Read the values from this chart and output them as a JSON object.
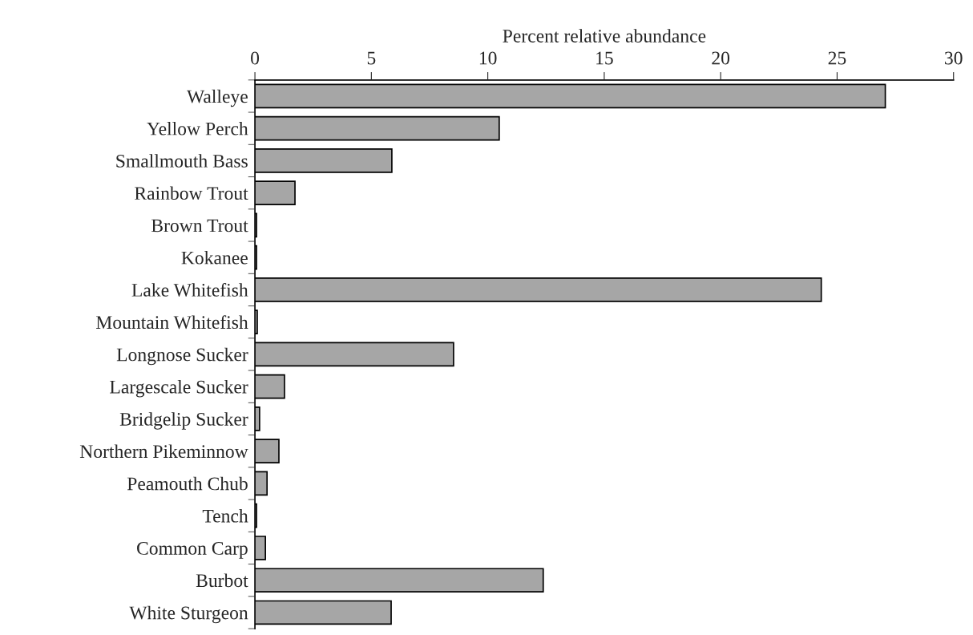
{
  "chart_data": {
    "type": "bar",
    "orientation": "horizontal",
    "xlabel": "Percent relative abundance",
    "categories": [
      "Walleye",
      "Yellow Perch",
      "Smallmouth Bass",
      "Rainbow Trout",
      "Brown Trout",
      "Kokanee",
      "Lake Whitefish",
      "Mountain Whitefish",
      "Longnose Sucker",
      "Largescale Sucker",
      "Bridgelip Sucker",
      "Northern Pikeminnow",
      "Peamouth Chub",
      "Tench",
      "Common Carp",
      "Burbot",
      "White Sturgeon"
    ],
    "values": [
      27.07,
      10.49,
      5.88,
      1.72,
      0.07,
      0.07,
      24.32,
      0.1,
      8.53,
      1.27,
      0.2,
      1.03,
      0.52,
      0.07,
      0.45,
      12.38,
      5.85
    ],
    "color": "#a6a6a6",
    "xlim": [
      0,
      30
    ],
    "xticks": [
      0,
      5,
      10,
      15,
      20,
      25,
      30
    ],
    "grid": false,
    "legend": false
  }
}
